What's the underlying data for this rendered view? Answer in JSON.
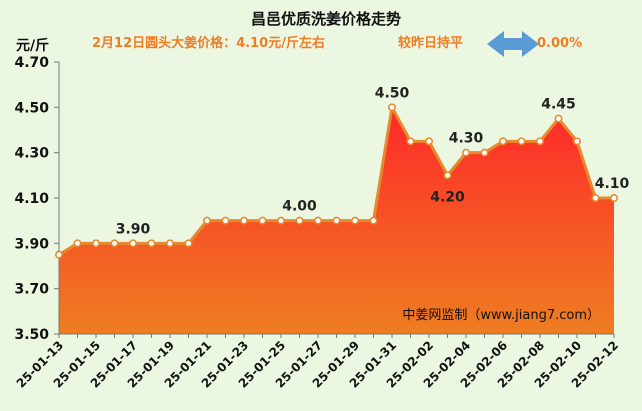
{
  "title": "昌邑优质洗姜价格走势",
  "subtitle": {
    "price_text": "2月12日圆头大姜价格：4.10元/斤左右",
    "change_text": "较昨日持平",
    "change_value": "0.00%",
    "color": "#ee7d22",
    "arrow_color": "#5b9bd5"
  },
  "watermark": "中姜网监制（www.jiang7.com）",
  "colors": {
    "background": "#ecf7e2",
    "line": "#e68a2e",
    "area_top": "#fe2929",
    "area_bottom": "#ee7d22"
  },
  "chart_data": {
    "type": "area",
    "title": "昌邑优质洗姜价格走势",
    "ylabel": "元/斤",
    "xlabel": "",
    "ylim": [
      3.5,
      4.7
    ],
    "yticks": [
      "3.50",
      "3.70",
      "3.90",
      "4.10",
      "4.30",
      "4.50",
      "4.70"
    ],
    "grid": false,
    "x": [
      "25-01-13",
      "25-01-14",
      "25-01-15",
      "25-01-16",
      "25-01-17",
      "25-01-18",
      "25-01-19",
      "25-01-20",
      "25-01-21",
      "25-01-22",
      "25-01-23",
      "25-01-24",
      "25-01-25",
      "25-01-26",
      "25-01-27",
      "25-01-28",
      "25-01-29",
      "25-01-30",
      "25-01-31",
      "25-02-01",
      "25-02-02",
      "25-02-03",
      "25-02-04",
      "25-02-05",
      "25-02-06",
      "25-02-07",
      "25-02-08",
      "25-02-09",
      "25-02-10",
      "25-02-11",
      "25-02-12"
    ],
    "xtick_labels": [
      "25-01-13",
      "25-01-15",
      "25-01-17",
      "25-01-19",
      "25-01-21",
      "25-01-23",
      "25-01-25",
      "25-01-27",
      "25-01-29",
      "25-01-31",
      "25-02-02",
      "25-02-04",
      "25-02-06",
      "25-02-08",
      "25-02-10",
      "25-02-12"
    ],
    "values": [
      3.85,
      3.9,
      3.9,
      3.9,
      3.9,
      3.9,
      3.9,
      3.9,
      4.0,
      4.0,
      4.0,
      4.0,
      4.0,
      4.0,
      4.0,
      4.0,
      4.0,
      4.0,
      4.5,
      4.35,
      4.35,
      4.2,
      4.3,
      4.3,
      4.35,
      4.35,
      4.35,
      4.45,
      4.35,
      4.1,
      4.1
    ],
    "data_labels": [
      {
        "index": 4,
        "text": "3.90"
      },
      {
        "index": 13,
        "text": "4.00"
      },
      {
        "index": 18,
        "text": "4.50"
      },
      {
        "index": 21,
        "text": "4.20"
      },
      {
        "index": 22,
        "text": "4.30"
      },
      {
        "index": 27,
        "text": "4.45"
      },
      {
        "index": 30,
        "text": "4.10"
      }
    ]
  }
}
